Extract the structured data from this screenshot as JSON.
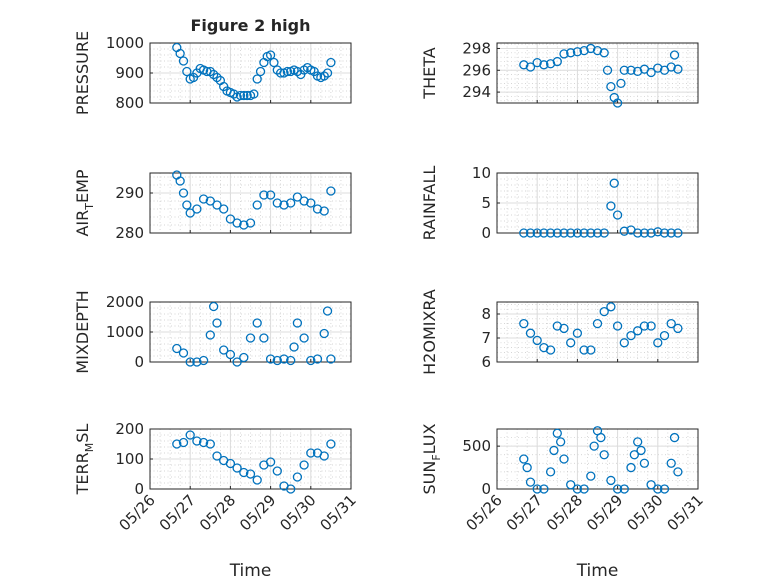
{
  "chart_data": [
    {
      "id": "pressure",
      "type": "scatter",
      "title": "Figure 2 high",
      "ylabel": "PRESSURE",
      "ylim": [
        800,
        1000
      ],
      "yticks": [
        800,
        900,
        1000
      ],
      "xlim": [
        "05/26",
        "05/31"
      ],
      "xticks": [],
      "grid": true,
      "x": [
        "05/26 16:00",
        "05/26 18:00",
        "05/26 20:00",
        "05/26 22:00",
        "05/27 00:00",
        "05/27 02:00",
        "05/27 04:00",
        "05/27 06:00",
        "05/27 08:00",
        "05/27 10:00",
        "05/27 12:00",
        "05/27 14:00",
        "05/27 16:00",
        "05/27 18:00",
        "05/27 20:00",
        "05/27 22:00",
        "05/28 00:00",
        "05/28 02:00",
        "05/28 04:00",
        "05/28 06:00",
        "05/28 08:00",
        "05/28 10:00",
        "05/28 12:00",
        "05/28 14:00",
        "05/28 16:00",
        "05/28 18:00",
        "05/28 20:00",
        "05/28 22:00",
        "05/29 00:00",
        "05/29 02:00",
        "05/29 04:00",
        "05/29 06:00",
        "05/29 08:00",
        "05/29 10:00",
        "05/29 12:00",
        "05/29 14:00",
        "05/29 16:00",
        "05/29 18:00",
        "05/29 20:00",
        "05/29 22:00",
        "05/30 00:00",
        "05/30 02:00",
        "05/30 04:00",
        "05/30 06:00",
        "05/30 08:00",
        "05/30 10:00",
        "05/30 12:00"
      ],
      "y": [
        985,
        965,
        940,
        905,
        880,
        885,
        900,
        915,
        910,
        905,
        905,
        895,
        885,
        875,
        855,
        840,
        835,
        830,
        820,
        825,
        825,
        825,
        825,
        830,
        880,
        905,
        935,
        955,
        960,
        935,
        910,
        900,
        900,
        905,
        905,
        910,
        905,
        895,
        910,
        918,
        910,
        905,
        890,
        885,
        890,
        900,
        935
      ]
    },
    {
      "id": "theta",
      "type": "scatter",
      "title": "",
      "ylabel": "THETA",
      "ylim": [
        293,
        298.5
      ],
      "yticks": [
        294,
        296,
        298
      ],
      "xlim": [
        "05/26",
        "05/31"
      ],
      "xticks": [],
      "grid": true,
      "x": [
        "05/26 16:00",
        "05/26 20:00",
        "05/27 00:00",
        "05/27 04:00",
        "05/27 08:00",
        "05/27 12:00",
        "05/27 16:00",
        "05/27 20:00",
        "05/28 00:00",
        "05/28 04:00",
        "05/28 08:00",
        "05/28 12:00",
        "05/28 16:00",
        "05/28 18:00",
        "05/28 20:00",
        "05/28 22:00",
        "05/29 00:00",
        "05/29 02:00",
        "05/29 04:00",
        "05/29 08:00",
        "05/29 12:00",
        "05/29 16:00",
        "05/29 20:00",
        "05/30 00:00",
        "05/30 04:00",
        "05/30 08:00",
        "05/30 10:00",
        "05/30 12:00"
      ],
      "y": [
        296.5,
        296.3,
        296.7,
        296.5,
        296.6,
        296.8,
        297.5,
        297.6,
        297.7,
        297.8,
        298,
        297.8,
        297.6,
        296,
        294.5,
        293.5,
        293,
        294.8,
        296,
        296,
        295.9,
        296.1,
        295.8,
        296.2,
        296,
        296.3,
        297.4,
        296.1
      ]
    },
    {
      "id": "air_temp",
      "type": "scatter",
      "title": "",
      "ylabel": "AIR_TEMP",
      "ylim": [
        280,
        295
      ],
      "yticks": [
        280,
        290
      ],
      "xlim": [
        "05/26",
        "05/31"
      ],
      "xticks": [],
      "grid": true,
      "x": [
        "05/26 16:00",
        "05/26 18:00",
        "05/26 20:00",
        "05/26 22:00",
        "05/27 00:00",
        "05/27 04:00",
        "05/27 08:00",
        "05/27 12:00",
        "05/27 16:00",
        "05/27 20:00",
        "05/28 00:00",
        "05/28 04:00",
        "05/28 08:00",
        "05/28 12:00",
        "05/28 16:00",
        "05/28 20:00",
        "05/29 00:00",
        "05/29 04:00",
        "05/29 08:00",
        "05/29 12:00",
        "05/29 16:00",
        "05/29 20:00",
        "05/30 00:00",
        "05/30 04:00",
        "05/30 08:00",
        "05/30 12:00"
      ],
      "y": [
        294.5,
        293,
        290,
        287,
        285,
        286,
        288.5,
        288,
        287,
        286,
        283.5,
        282.5,
        282,
        282.5,
        287,
        289.5,
        289.5,
        287.5,
        287,
        287.5,
        289,
        288,
        287.5,
        286,
        285.5,
        290.5
      ]
    },
    {
      "id": "rainfall",
      "type": "scatter",
      "title": "",
      "ylabel": "RAINFALL",
      "ylim": [
        0,
        10
      ],
      "yticks": [
        0,
        5,
        10
      ],
      "xlim": [
        "05/26",
        "05/31"
      ],
      "xticks": [],
      "grid": true,
      "x": [
        "05/26 16:00",
        "05/26 20:00",
        "05/27 00:00",
        "05/27 04:00",
        "05/27 08:00",
        "05/27 12:00",
        "05/27 16:00",
        "05/27 20:00",
        "05/28 00:00",
        "05/28 04:00",
        "05/28 08:00",
        "05/28 12:00",
        "05/28 16:00",
        "05/28 20:00",
        "05/28 22:00",
        "05/29 00:00",
        "05/29 04:00",
        "05/29 08:00",
        "05/29 12:00",
        "05/29 16:00",
        "05/29 20:00",
        "05/30 00:00",
        "05/30 04:00",
        "05/30 08:00",
        "05/30 12:00"
      ],
      "y": [
        0,
        0,
        0,
        0,
        0,
        0,
        0,
        0,
        0,
        0,
        0,
        0,
        0,
        4.5,
        8.3,
        3,
        0.3,
        0.5,
        0,
        0,
        0,
        0.2,
        0,
        0,
        0
      ]
    },
    {
      "id": "mixdepth",
      "type": "scatter",
      "title": "",
      "ylabel": "MIXDEPTH",
      "ylim": [
        0,
        2000
      ],
      "yticks": [
        0,
        1000,
        2000
      ],
      "xlim": [
        "05/26",
        "05/31"
      ],
      "xticks": [],
      "grid": true,
      "x": [
        "05/26 16:00",
        "05/26 20:00",
        "05/27 00:00",
        "05/27 04:00",
        "05/27 08:00",
        "05/27 12:00",
        "05/27 14:00",
        "05/27 16:00",
        "05/27 20:00",
        "05/28 00:00",
        "05/28 04:00",
        "05/28 08:00",
        "05/28 12:00",
        "05/28 16:00",
        "05/28 20:00",
        "05/29 00:00",
        "05/29 04:00",
        "05/29 08:00",
        "05/29 12:00",
        "05/29 14:00",
        "05/29 16:00",
        "05/29 20:00",
        "05/30 00:00",
        "05/30 04:00",
        "05/30 08:00",
        "05/30 10:00",
        "05/30 12:00"
      ],
      "y": [
        450,
        300,
        0,
        0,
        50,
        900,
        1850,
        1300,
        400,
        250,
        0,
        150,
        800,
        1300,
        800,
        100,
        50,
        100,
        50,
        500,
        1300,
        800,
        50,
        100,
        950,
        1700,
        100
      ]
    },
    {
      "id": "h2omixra",
      "type": "scatter",
      "title": "",
      "ylabel": "H2OMIXRA",
      "ylim": [
        6,
        8.5
      ],
      "yticks": [
        6,
        7,
        8
      ],
      "xlim": [
        "05/26",
        "05/31"
      ],
      "xticks": [],
      "grid": true,
      "x": [
        "05/26 16:00",
        "05/26 20:00",
        "05/27 00:00",
        "05/27 04:00",
        "05/27 08:00",
        "05/27 12:00",
        "05/27 16:00",
        "05/27 20:00",
        "05/28 00:00",
        "05/28 04:00",
        "05/28 08:00",
        "05/28 12:00",
        "05/28 16:00",
        "05/28 20:00",
        "05/29 00:00",
        "05/29 04:00",
        "05/29 08:00",
        "05/29 12:00",
        "05/29 16:00",
        "05/29 20:00",
        "05/30 00:00",
        "05/30 04:00",
        "05/30 08:00",
        "05/30 12:00"
      ],
      "y": [
        7.6,
        7.2,
        6.9,
        6.6,
        6.5,
        7.5,
        7.4,
        6.8,
        7.2,
        6.5,
        6.5,
        7.6,
        8.1,
        8.3,
        7.5,
        6.8,
        7.1,
        7.3,
        7.5,
        7.5,
        6.8,
        7.1,
        7.6,
        7.4
      ]
    },
    {
      "id": "terr_msl",
      "type": "scatter",
      "title": "",
      "ylabel": "TERR_MSL",
      "ylim": [
        0,
        200
      ],
      "yticks": [
        0,
        100,
        200
      ],
      "xlim": [
        "05/26",
        "05/31"
      ],
      "xticks": [
        "05/26",
        "05/27",
        "05/28",
        "05/29",
        "05/30",
        "05/31"
      ],
      "xlabel": "Time",
      "grid": true,
      "x": [
        "05/26 16:00",
        "05/26 20:00",
        "05/27 00:00",
        "05/27 04:00",
        "05/27 08:00",
        "05/27 12:00",
        "05/27 16:00",
        "05/27 20:00",
        "05/28 00:00",
        "05/28 04:00",
        "05/28 08:00",
        "05/28 12:00",
        "05/28 16:00",
        "05/28 20:00",
        "05/29 00:00",
        "05/29 04:00",
        "05/29 08:00",
        "05/29 12:00",
        "05/29 16:00",
        "05/29 20:00",
        "05/30 00:00",
        "05/30 04:00",
        "05/30 08:00",
        "05/30 12:00"
      ],
      "y": [
        150,
        155,
        180,
        160,
        155,
        150,
        110,
        95,
        85,
        70,
        55,
        50,
        30,
        80,
        90,
        60,
        10,
        0,
        40,
        80,
        120,
        120,
        110,
        150
      ]
    },
    {
      "id": "sun_flux",
      "type": "scatter",
      "title": "",
      "ylabel": "SUN_FLUX",
      "ylim": [
        0,
        700
      ],
      "yticks": [
        0,
        500
      ],
      "xlim": [
        "05/26",
        "05/31"
      ],
      "xticks": [
        "05/26",
        "05/27",
        "05/28",
        "05/29",
        "05/30",
        "05/31"
      ],
      "xlabel": "Time",
      "grid": true,
      "x": [
        "05/26 16:00",
        "05/26 18:00",
        "05/26 20:00",
        "05/27 00:00",
        "05/27 04:00",
        "05/27 08:00",
        "05/27 10:00",
        "05/27 12:00",
        "05/27 14:00",
        "05/27 16:00",
        "05/27 20:00",
        "05/28 00:00",
        "05/28 04:00",
        "05/28 08:00",
        "05/28 10:00",
        "05/28 12:00",
        "05/28 14:00",
        "05/28 16:00",
        "05/28 20:00",
        "05/29 00:00",
        "05/29 04:00",
        "05/29 08:00",
        "05/29 10:00",
        "05/29 12:00",
        "05/29 14:00",
        "05/29 16:00",
        "05/29 20:00",
        "05/30 00:00",
        "05/30 04:00",
        "05/30 08:00",
        "05/30 10:00",
        "05/30 12:00"
      ],
      "y": [
        350,
        250,
        80,
        0,
        0,
        200,
        450,
        650,
        550,
        350,
        50,
        0,
        0,
        150,
        500,
        680,
        600,
        400,
        100,
        0,
        0,
        250,
        400,
        550,
        450,
        300,
        50,
        0,
        0,
        300,
        600,
        200
      ]
    }
  ]
}
